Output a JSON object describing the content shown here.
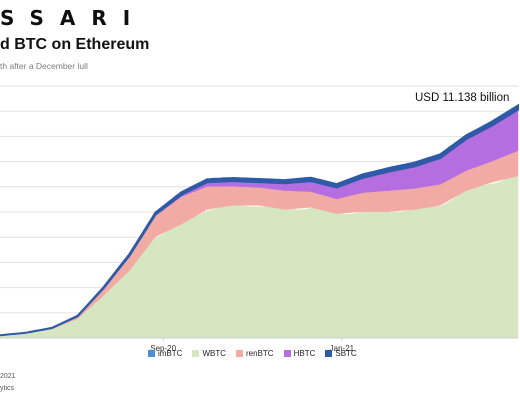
{
  "header": {
    "brand": "SSARI",
    "title": "d BTC on Ethereum",
    "subtitle": "th after a December lull"
  },
  "footer": {
    "line1": "2021",
    "line2": "ytics"
  },
  "colors": {
    "imBTC": "#4a90d9",
    "WBTC": "#d5e6c0",
    "renBTC": "#f2aaa4",
    "HBTC": "#b56ee0",
    "SBTC": "#2f5aa8",
    "gridline": "#e2e2e2",
    "axis": "#cfcfcf"
  },
  "chart_data": {
    "type": "area",
    "stacked": true,
    "annotation": "USD 11.138 billion",
    "x_tick_labels": [
      "Sep-20",
      "Jan-21"
    ],
    "x_tick_positions": [
      0.315,
      0.66
    ],
    "grid": true,
    "legend_position": "bottom",
    "x": [
      0,
      0.05,
      0.1,
      0.15,
      0.2,
      0.25,
      0.3,
      0.35,
      0.4,
      0.45,
      0.5,
      0.55,
      0.6,
      0.65,
      0.7,
      0.75,
      0.8,
      0.85,
      0.9,
      0.95,
      1.0
    ],
    "series": [
      {
        "name": "imBTC",
        "values": [
          0.02,
          0.02,
          0.02,
          0.02,
          0.02,
          0.02,
          0.02,
          0.02,
          0.02,
          0.02,
          0.02,
          0.02,
          0.02,
          0.02,
          0.02,
          0.02,
          0.02,
          0.02,
          0.02,
          0.02,
          0.02
        ]
      },
      {
        "name": "WBTC",
        "values": [
          0.1,
          0.2,
          0.4,
          0.9,
          2.0,
          3.2,
          4.8,
          5.4,
          6.1,
          6.3,
          6.3,
          6.1,
          6.2,
          5.9,
          6.0,
          6.0,
          6.1,
          6.3,
          7.0,
          7.4,
          7.7
        ]
      },
      {
        "name": "renBTC",
        "values": [
          0.01,
          0.03,
          0.05,
          0.12,
          0.35,
          0.7,
          1.0,
          1.3,
          1.1,
          0.9,
          0.85,
          0.9,
          0.75,
          0.7,
          0.9,
          1.0,
          1.0,
          1.0,
          0.95,
          1.0,
          1.2
        ]
      },
      {
        "name": "HBTC",
        "values": [
          0.0,
          0.0,
          0.0,
          0.0,
          0.0,
          0.0,
          0.05,
          0.1,
          0.2,
          0.25,
          0.25,
          0.35,
          0.5,
          0.55,
          0.7,
          0.9,
          1.05,
          1.25,
          1.5,
          1.7,
          1.95
        ]
      },
      {
        "name": "SBTC",
        "values": [
          0.0,
          0.0,
          0.01,
          0.02,
          0.05,
          0.08,
          0.1,
          0.12,
          0.14,
          0.15,
          0.15,
          0.15,
          0.16,
          0.16,
          0.17,
          0.17,
          0.18,
          0.18,
          0.18,
          0.19,
          0.2
        ]
      }
    ],
    "ylim": [
      0,
      12
    ]
  }
}
